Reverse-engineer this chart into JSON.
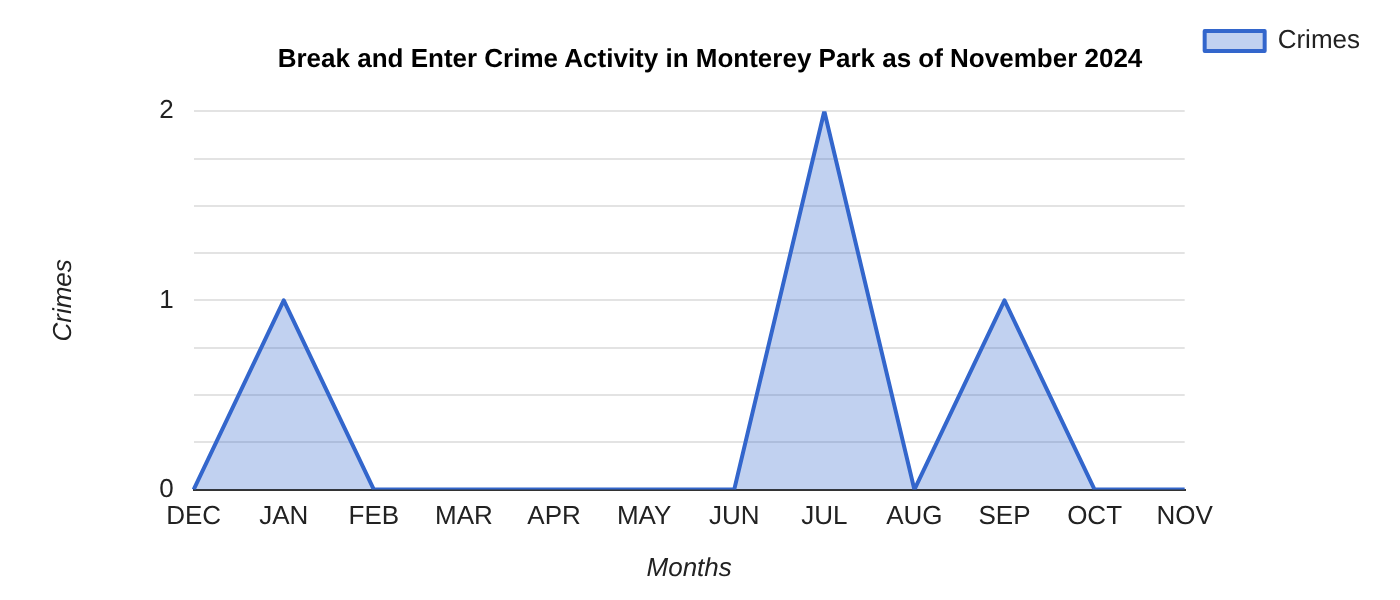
{
  "chart_data": {
    "type": "area",
    "title": "Break and Enter Crime Activity in Monterey Park as of November 2024",
    "xlabel": "Months",
    "ylabel": "Crimes",
    "categories": [
      "DEC",
      "JAN",
      "FEB",
      "MAR",
      "APR",
      "MAY",
      "JUN",
      "JUL",
      "AUG",
      "SEP",
      "OCT",
      "NOV"
    ],
    "series": [
      {
        "name": "Crimes",
        "color": "#3366cc",
        "values": [
          0,
          1,
          0,
          0,
          0,
          0,
          0,
          2,
          0,
          1,
          0,
          0
        ]
      }
    ],
    "ylim": [
      0,
      2
    ],
    "yticks": [
      0,
      {
        "value": 0.25,
        "label": null
      },
      {
        "value": 0.5,
        "label": null
      },
      {
        "value": 0.75,
        "label": null
      },
      1,
      {
        "value": 1.25,
        "label": null
      },
      {
        "value": 1.5,
        "label": null
      },
      {
        "value": 1.75,
        "label": null
      },
      2
    ],
    "grid": "y",
    "legend": "top right",
    "marker": "none"
  }
}
